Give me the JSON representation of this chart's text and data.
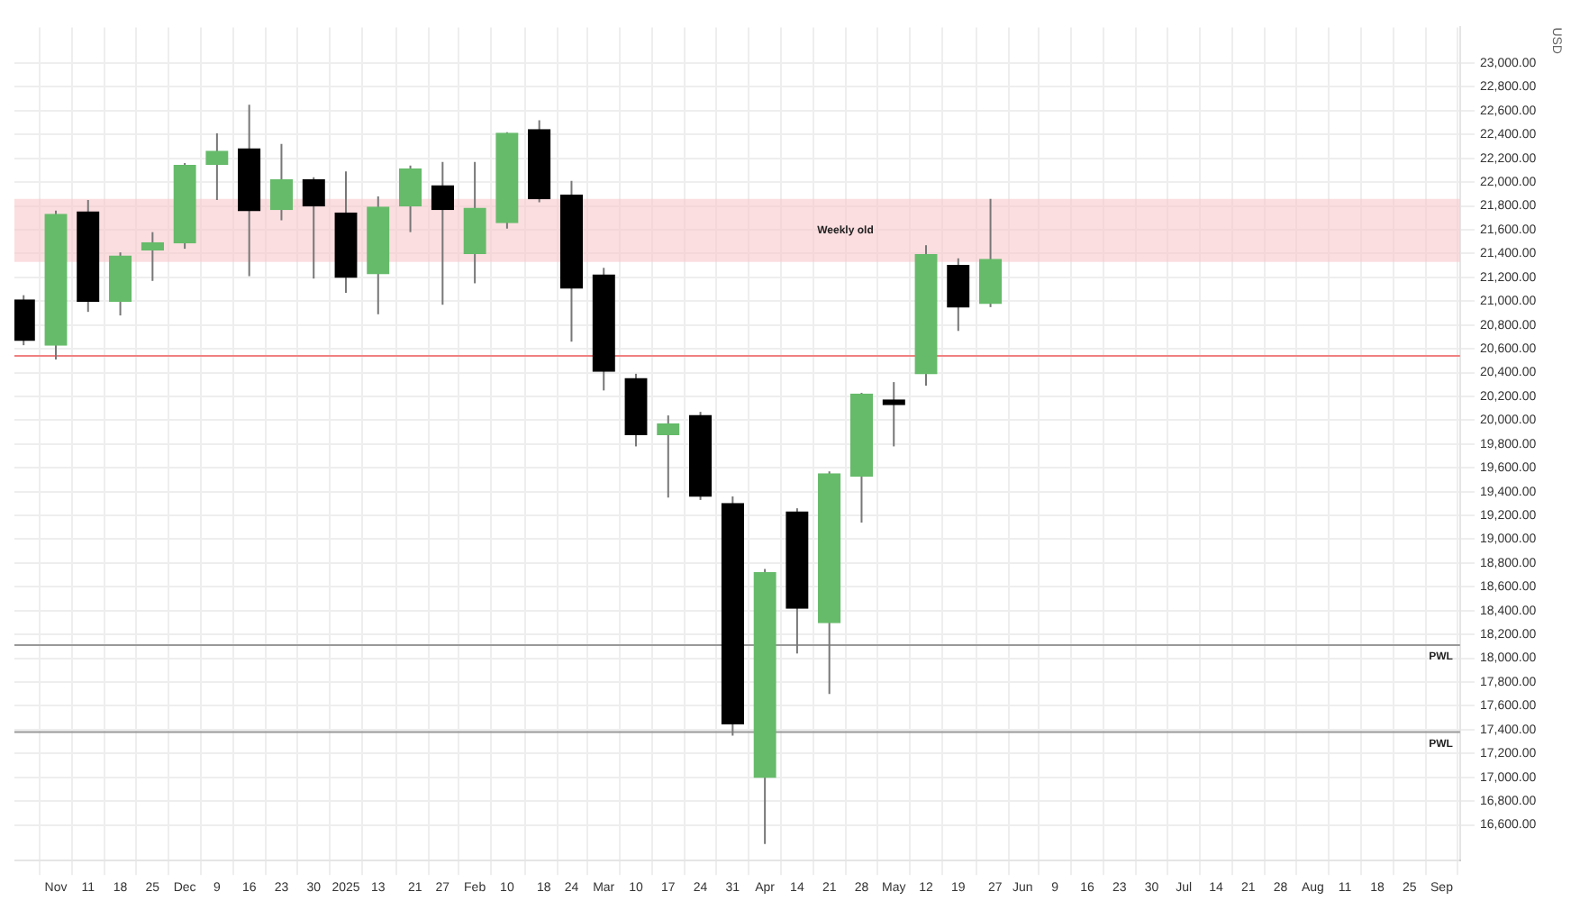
{
  "chart_data": {
    "type": "candlestick",
    "x": [
      "2024-10-28",
      "2024-11-04",
      "2024-11-11",
      "2024-11-18",
      "2024-11-25",
      "2024-12-02",
      "2024-12-09",
      "2024-12-16",
      "2024-12-23",
      "2024-12-30",
      "2025-01-06",
      "2025-01-13",
      "2025-01-20",
      "2025-01-27",
      "2025-02-03",
      "2025-02-10",
      "2025-02-17",
      "2025-02-24",
      "2025-03-03",
      "2025-03-10",
      "2025-03-17",
      "2025-03-24",
      "2025-03-31",
      "2025-04-07",
      "2025-04-14",
      "2025-04-21",
      "2025-04-28",
      "2025-05-05",
      "2025-05-12",
      "2025-05-19",
      "2025-05-26"
    ],
    "ohlc": [
      [
        21010,
        21050,
        20630,
        20670
      ],
      [
        20630,
        21760,
        20510,
        21730
      ],
      [
        21750,
        21850,
        20910,
        21000
      ],
      [
        21000,
        21410,
        20880,
        21380
      ],
      [
        21430,
        21580,
        21170,
        21490
      ],
      [
        21490,
        22160,
        21440,
        22140
      ],
      [
        22150,
        22410,
        21850,
        22260
      ],
      [
        22280,
        22650,
        21210,
        21760
      ],
      [
        21770,
        22320,
        21680,
        22020
      ],
      [
        22020,
        22040,
        21190,
        21800
      ],
      [
        21740,
        22090,
        21070,
        21200
      ],
      [
        21230,
        21880,
        20890,
        21790
      ],
      [
        21800,
        22140,
        21580,
        22110
      ],
      [
        21970,
        22170,
        20970,
        21770
      ],
      [
        21400,
        22170,
        21150,
        21780
      ],
      [
        21660,
        22420,
        21610,
        22410
      ],
      [
        22440,
        22520,
        21830,
        21860
      ],
      [
        21890,
        22010,
        20660,
        21110
      ],
      [
        21220,
        21280,
        20250,
        20410
      ],
      [
        20350,
        20390,
        19780,
        19880
      ],
      [
        19880,
        20040,
        19350,
        19970
      ],
      [
        20040,
        20070,
        19330,
        19360
      ],
      [
        19300,
        19360,
        17350,
        17450
      ],
      [
        17000,
        18750,
        16440,
        18720
      ],
      [
        19230,
        19260,
        18040,
        18420
      ],
      [
        18300,
        19570,
        17700,
        19550
      ],
      [
        19530,
        20230,
        19140,
        20220
      ],
      [
        20170,
        20320,
        19780,
        20130
      ],
      [
        20390,
        21470,
        20290,
        21390
      ],
      [
        21300,
        21360,
        20750,
        20950
      ],
      [
        20980,
        21860,
        20950,
        21350
      ]
    ],
    "colors": [
      "#000000",
      "#66bb6a",
      "#000000",
      "#66bb6a",
      "#66bb6a",
      "#66bb6a",
      "#66bb6a",
      "#000000",
      "#66bb6a",
      "#000000",
      "#000000",
      "#66bb6a",
      "#66bb6a",
      "#000000",
      "#66bb6a",
      "#66bb6a",
      "#000000",
      "#000000",
      "#000000",
      "#000000",
      "#66bb6a",
      "#000000",
      "#000000",
      "#66bb6a",
      "#000000",
      "#66bb6a",
      "#66bb6a",
      "#000000",
      "#66bb6a",
      "#000000",
      "#66bb6a"
    ],
    "xlim": [
      "2024-10-26",
      "2025-09-05"
    ],
    "xticks": [
      {
        "value": "2024-11-04",
        "label": "Nov"
      },
      {
        "value": "2024-11-11",
        "label": "11"
      },
      {
        "value": "2024-11-18",
        "label": "18"
      },
      {
        "value": "2024-11-25",
        "label": "25"
      },
      {
        "value": "2024-12-02",
        "label": "Dec"
      },
      {
        "value": "2024-12-09",
        "label": "9"
      },
      {
        "value": "2024-12-16",
        "label": "16"
      },
      {
        "value": "2024-12-23",
        "label": "23"
      },
      {
        "value": "2024-12-30",
        "label": "30"
      },
      {
        "value": "2025-01-06",
        "label": "2025"
      },
      {
        "value": "2025-01-13",
        "label": "13"
      },
      {
        "value": "2025-01-21",
        "label": "21"
      },
      {
        "value": "2025-01-27",
        "label": "27"
      },
      {
        "value": "2025-02-03",
        "label": "Feb"
      },
      {
        "value": "2025-02-10",
        "label": "10"
      },
      {
        "value": "2025-02-18",
        "label": "18"
      },
      {
        "value": "2025-02-24",
        "label": "24"
      },
      {
        "value": "2025-03-03",
        "label": "Mar"
      },
      {
        "value": "2025-03-10",
        "label": "10"
      },
      {
        "value": "2025-03-17",
        "label": "17"
      },
      {
        "value": "2025-03-24",
        "label": "24"
      },
      {
        "value": "2025-03-31",
        "label": "31"
      },
      {
        "value": "2025-04-07",
        "label": "Apr"
      },
      {
        "value": "2025-04-14",
        "label": "14"
      },
      {
        "value": "2025-04-21",
        "label": "21"
      },
      {
        "value": "2025-04-28",
        "label": "28"
      },
      {
        "value": "2025-05-05",
        "label": "May"
      },
      {
        "value": "2025-05-12",
        "label": "12"
      },
      {
        "value": "2025-05-19",
        "label": "19"
      },
      {
        "value": "2025-05-27",
        "label": "27"
      },
      {
        "value": "2025-06-02",
        "label": "Jun"
      },
      {
        "value": "2025-06-09",
        "label": "9"
      },
      {
        "value": "2025-06-16",
        "label": "16"
      },
      {
        "value": "2025-06-23",
        "label": "23"
      },
      {
        "value": "2025-06-30",
        "label": "30"
      },
      {
        "value": "2025-07-07",
        "label": "Jul"
      },
      {
        "value": "2025-07-14",
        "label": "14"
      },
      {
        "value": "2025-07-21",
        "label": "21"
      },
      {
        "value": "2025-07-28",
        "label": "28"
      },
      {
        "value": "2025-08-04",
        "label": "Aug"
      },
      {
        "value": "2025-08-11",
        "label": "11"
      },
      {
        "value": "2025-08-18",
        "label": "18"
      },
      {
        "value": "2025-08-25",
        "label": "25"
      },
      {
        "value": "2025-09-01",
        "label": "Sep"
      }
    ],
    "ylim": [
      16300,
      23300
    ],
    "yticks": [
      {
        "value": 16600,
        "label": "16,600.00"
      },
      {
        "value": 16800,
        "label": "16,800.00"
      },
      {
        "value": 17000,
        "label": "17,000.00"
      },
      {
        "value": 17200,
        "label": "17,200.00"
      },
      {
        "value": 17400,
        "label": "17,400.00"
      },
      {
        "value": 17600,
        "label": "17,600.00"
      },
      {
        "value": 17800,
        "label": "17,800.00"
      },
      {
        "value": 18000,
        "label": "18,000.00"
      },
      {
        "value": 18200,
        "label": "18,200.00"
      },
      {
        "value": 18400,
        "label": "18,400.00"
      },
      {
        "value": 18600,
        "label": "18,600.00"
      },
      {
        "value": 18800,
        "label": "18,800.00"
      },
      {
        "value": 19000,
        "label": "19,000.00"
      },
      {
        "value": 19200,
        "label": "19,200.00"
      },
      {
        "value": 19400,
        "label": "19,400.00"
      },
      {
        "value": 19600,
        "label": "19,600.00"
      },
      {
        "value": 19800,
        "label": "19,800.00"
      },
      {
        "value": 20000,
        "label": "20,000.00"
      },
      {
        "value": 20200,
        "label": "20,200.00"
      },
      {
        "value": 20400,
        "label": "20,400.00"
      },
      {
        "value": 20600,
        "label": "20,600.00"
      },
      {
        "value": 20800,
        "label": "20,800.00"
      },
      {
        "value": 21000,
        "label": "21,000.00"
      },
      {
        "value": 21200,
        "label": "21,200.00"
      },
      {
        "value": 21400,
        "label": "21,400.00"
      },
      {
        "value": 21600,
        "label": "21,600.00"
      },
      {
        "value": 21800,
        "label": "21,800.00"
      },
      {
        "value": 22000,
        "label": "22,000.00"
      },
      {
        "value": 22200,
        "label": "22,200.00"
      },
      {
        "value": 22400,
        "label": "22,400.00"
      },
      {
        "value": 22600,
        "label": "22,600.00"
      },
      {
        "value": 22800,
        "label": "22,800.00"
      },
      {
        "value": 23000,
        "label": "23,000.00"
      }
    ],
    "ylabel": "USD",
    "bands": [
      {
        "axis": "y",
        "from": 21330,
        "to": 21860,
        "label": "Weekly old",
        "color": "#f8c8cc"
      }
    ],
    "ref_lines": [
      {
        "axis": "y",
        "value": 20540,
        "color": "#f08080"
      },
      {
        "axis": "y",
        "value": 18110,
        "label": "PWL",
        "color": "#999999"
      },
      {
        "axis": "y",
        "value": 17380,
        "label": "PWL",
        "color": "#999999"
      }
    ],
    "grid": true
  }
}
